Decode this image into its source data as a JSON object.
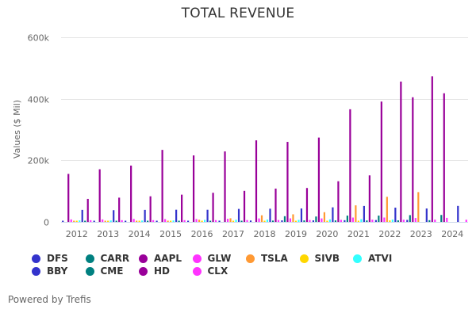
{
  "chart_data": {
    "type": "bar",
    "title": "TOTAL REVENUE",
    "xlabel": "",
    "ylabel": "Values ($ Mil)",
    "ylim": [
      0,
      600000
    ],
    "yticks": [
      {
        "value": 0,
        "label": "0"
      },
      {
        "value": 200000,
        "label": "200k"
      },
      {
        "value": 400000,
        "label": "400k"
      },
      {
        "value": 600000,
        "label": "600k"
      }
    ],
    "grid": true,
    "legend_position": "bottom",
    "categories": [
      "2012",
      "2013",
      "2014",
      "2015",
      "2016",
      "2017",
      "2018",
      "2019",
      "2020",
      "2021",
      "2022",
      "2023",
      "2024"
    ],
    "series": [
      {
        "name": "DFS",
        "color": "#3333cc",
        "values": [
          3000,
          3000,
          3000,
          3500,
          3500,
          4000,
          4500,
          5000,
          5000,
          5500,
          6000,
          6500,
          0
        ]
      },
      {
        "name": "CARR",
        "color": "#008080",
        "values": [
          0,
          0,
          0,
          0,
          0,
          0,
          0,
          18500,
          17500,
          20500,
          20500,
          22000,
          22500
        ]
      },
      {
        "name": "AAPL",
        "color": "#990099",
        "values": [
          156000,
          171000,
          183000,
          234000,
          216000,
          229000,
          265000,
          260000,
          274000,
          366000,
          391000,
          405000,
          418000
        ]
      },
      {
        "name": "GLW",
        "color": "#ff33ff",
        "values": [
          8000,
          8000,
          9700,
          9100,
          9400,
          10100,
          11300,
          11500,
          11300,
          14100,
          14200,
          12600,
          13100
        ]
      },
      {
        "name": "TSLA",
        "color": "#ff9933",
        "values": [
          400,
          2000,
          3200,
          4000,
          7000,
          11800,
          21500,
          24600,
          31500,
          53800,
          81500,
          96800,
          0
        ]
      },
      {
        "name": "SIVB",
        "color": "#ffd700",
        "values": [
          1000,
          1000,
          1100,
          1200,
          1400,
          1600,
          2100,
          2400,
          3000,
          4000,
          5000,
          0,
          0
        ]
      },
      {
        "name": "ATVI",
        "color": "#33ffff",
        "values": [
          4900,
          4600,
          4400,
          4700,
          6600,
          7000,
          7500,
          6500,
          8100,
          8800,
          7500,
          0,
          0
        ]
      },
      {
        "name": "BBY",
        "color": "#3333cc",
        "values": [
          39000,
          38000,
          39000,
          39500,
          39400,
          42200,
          42900,
          43600,
          47300,
          51800,
          46300,
          43500,
          52000
        ]
      },
      {
        "name": "CME",
        "color": "#008080",
        "values": [
          2900,
          2900,
          3100,
          3300,
          3600,
          3600,
          4300,
          4900,
          4900,
          4700,
          5000,
          5600,
          0
        ]
      },
      {
        "name": "HD",
        "color": "#990099",
        "values": [
          74800,
          78800,
          83200,
          88500,
          94600,
          100900,
          108200,
          110200,
          132100,
          151200,
          456000,
          473000,
          0
        ]
      },
      {
        "name": "CLX",
        "color": "#ff33ff",
        "values": [
          5500,
          5600,
          5600,
          5700,
          5800,
          6000,
          6100,
          6200,
          6700,
          7300,
          7100,
          7400,
          7100
        ]
      }
    ]
  },
  "legend": {
    "items": [
      {
        "name": "DFS",
        "color": "#3333cc"
      },
      {
        "name": "CARR",
        "color": "#008080"
      },
      {
        "name": "AAPL",
        "color": "#990099"
      },
      {
        "name": "GLW",
        "color": "#ff33ff"
      },
      {
        "name": "TSLA",
        "color": "#ff9933"
      },
      {
        "name": "SIVB",
        "color": "#ffd700"
      },
      {
        "name": "ATVI",
        "color": "#33ffff"
      },
      {
        "name": "BBY",
        "color": "#3333cc"
      },
      {
        "name": "CME",
        "color": "#008080"
      },
      {
        "name": "HD",
        "color": "#990099"
      },
      {
        "name": "CLX",
        "color": "#ff33ff"
      }
    ]
  },
  "footer": {
    "text": "Powered by Trefis"
  }
}
